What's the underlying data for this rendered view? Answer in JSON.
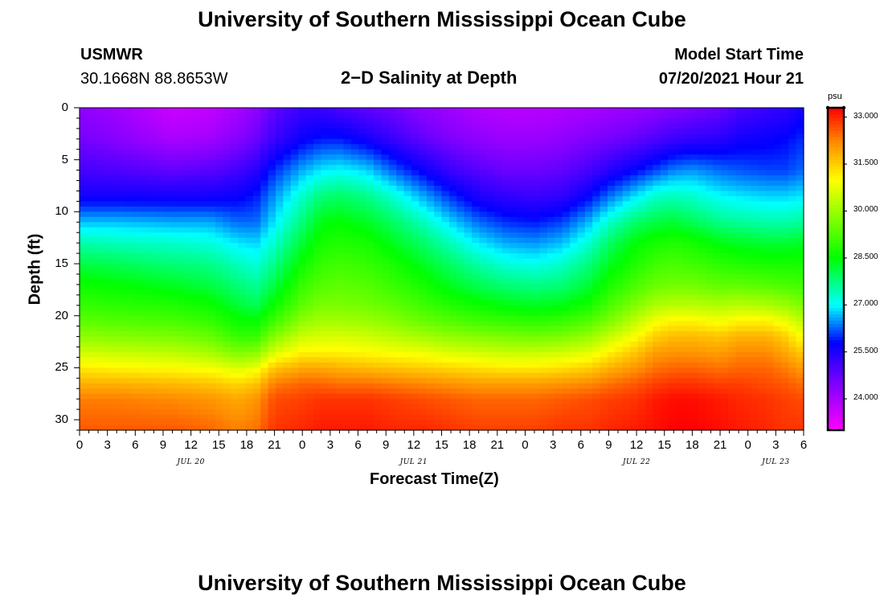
{
  "header": {
    "title": "University of Southern Mississippi Ocean Cube",
    "station": "USMWR",
    "location": "30.1668N  88.8653W",
    "plot_title": "2−D Salinity at Depth",
    "model_start_label": "Model Start Time",
    "model_start_value": "07/20/2021 Hour 21"
  },
  "footer": {
    "title": "University of Southern Mississippi Ocean Cube"
  },
  "colors": {
    "background": "#ffffff",
    "text": "#000000"
  },
  "chart_data": {
    "type": "heatmap",
    "title": "2−D Salinity at Depth",
    "xlabel": "Forecast Time(Z)",
    "ylabel": "Depth (ft)",
    "x_range_hours": [
      0,
      78
    ],
    "y_range_ft": [
      0,
      31
    ],
    "xticks": [
      {
        "hour": 0,
        "label": "0"
      },
      {
        "hour": 3,
        "label": "3"
      },
      {
        "hour": 6,
        "label": "6"
      },
      {
        "hour": 9,
        "label": "9"
      },
      {
        "hour": 12,
        "label": "12"
      },
      {
        "hour": 15,
        "label": "15"
      },
      {
        "hour": 18,
        "label": "18"
      },
      {
        "hour": 21,
        "label": "21"
      },
      {
        "hour": 24,
        "label": "0"
      },
      {
        "hour": 27,
        "label": "3"
      },
      {
        "hour": 30,
        "label": "6"
      },
      {
        "hour": 33,
        "label": "9"
      },
      {
        "hour": 36,
        "label": "12"
      },
      {
        "hour": 39,
        "label": "15"
      },
      {
        "hour": 42,
        "label": "18"
      },
      {
        "hour": 45,
        "label": "21"
      },
      {
        "hour": 48,
        "label": "0"
      },
      {
        "hour": 51,
        "label": "3"
      },
      {
        "hour": 54,
        "label": "6"
      },
      {
        "hour": 57,
        "label": "9"
      },
      {
        "hour": 60,
        "label": "12"
      },
      {
        "hour": 63,
        "label": "15"
      },
      {
        "hour": 66,
        "label": "18"
      },
      {
        "hour": 69,
        "label": "21"
      },
      {
        "hour": 72,
        "label": "0"
      },
      {
        "hour": 75,
        "label": "3"
      },
      {
        "hour": 78,
        "label": "6"
      }
    ],
    "yticks": [
      {
        "depth": 0,
        "label": "0"
      },
      {
        "depth": 5,
        "label": "5"
      },
      {
        "depth": 10,
        "label": "10"
      },
      {
        "depth": 15,
        "label": "15"
      },
      {
        "depth": 20,
        "label": "20"
      },
      {
        "depth": 25,
        "label": "25"
      },
      {
        "depth": 30,
        "label": "30"
      }
    ],
    "day_labels": [
      {
        "hour": 12,
        "label": "JUL 20"
      },
      {
        "hour": 36,
        "label": "JUL 21"
      },
      {
        "hour": 60,
        "label": "JUL 22"
      },
      {
        "hour": 75,
        "label": "JUL 23"
      }
    ],
    "colorbar": {
      "unit": "psu",
      "range": [
        23.0,
        33.3
      ],
      "ticks": [
        {
          "value": 33.0,
          "label": "33.000"
        },
        {
          "value": 31.5,
          "label": "31.500"
        },
        {
          "value": 30.0,
          "label": "30.000"
        },
        {
          "value": 28.5,
          "label": "28.500"
        },
        {
          "value": 27.0,
          "label": "27.000"
        },
        {
          "value": 25.5,
          "label": "25.500"
        },
        {
          "value": 24.0,
          "label": "24.000"
        }
      ],
      "color_stops": [
        {
          "value": 23.0,
          "color": "#ff00ff"
        },
        {
          "value": 24.5,
          "color": "#7f00ff"
        },
        {
          "value": 25.8,
          "color": "#0000ff"
        },
        {
          "value": 27.0,
          "color": "#00ffff"
        },
        {
          "value": 28.5,
          "color": "#00ff00"
        },
        {
          "value": 31.0,
          "color": "#ffff00"
        },
        {
          "value": 32.2,
          "color": "#ff8c00"
        },
        {
          "value": 33.3,
          "color": "#ff0000"
        }
      ]
    },
    "time_hours": [
      0,
      4,
      10,
      14,
      17,
      19,
      21,
      24,
      26,
      28,
      31,
      34,
      37,
      40,
      43,
      46,
      49,
      52,
      55,
      57,
      60,
      62,
      64,
      66,
      69,
      71,
      74,
      76,
      78
    ],
    "depth_ft": [
      0,
      3,
      6,
      8.5,
      11,
      13,
      15,
      17,
      19,
      20.5,
      22,
      23.5,
      25,
      26.5,
      28,
      31
    ],
    "salinity_psu": [
      [
        24.3,
        24.1,
        23.6,
        23.7,
        24.0,
        24.3,
        24.8,
        25.2,
        25.2,
        25.0,
        24.8,
        24.6,
        24.3,
        24.1,
        23.9,
        23.8,
        23.8,
        23.9,
        24.0,
        24.1,
        24.2,
        24.3,
        24.4,
        24.5,
        24.7,
        25.0,
        25.2,
        25.3,
        25.6
      ],
      [
        24.6,
        24.4,
        24.0,
        24.1,
        24.4,
        24.7,
        25.2,
        25.7,
        25.9,
        25.9,
        25.6,
        25.2,
        24.8,
        24.5,
        24.3,
        24.2,
        24.2,
        24.3,
        24.5,
        24.6,
        24.8,
        25.0,
        25.2,
        25.3,
        25.4,
        25.6,
        25.7,
        25.8,
        26.0
      ],
      [
        25.1,
        25.0,
        24.8,
        24.9,
        25.1,
        25.4,
        26.0,
        26.6,
        26.9,
        27.0,
        26.8,
        26.2,
        25.7,
        25.2,
        24.9,
        24.7,
        24.7,
        24.8,
        25.1,
        25.4,
        25.8,
        26.1,
        26.4,
        26.5,
        26.3,
        26.2,
        26.1,
        26.1,
        26.3
      ],
      [
        25.6,
        25.6,
        25.6,
        25.6,
        25.7,
        25.9,
        26.5,
        27.3,
        27.8,
        27.9,
        27.7,
        27.2,
        26.6,
        26.0,
        25.5,
        25.3,
        25.2,
        25.3,
        25.8,
        26.3,
        26.9,
        27.3,
        27.4,
        27.3,
        27.0,
        26.9,
        26.8,
        26.8,
        26.9
      ],
      [
        26.7,
        26.7,
        26.6,
        26.6,
        26.3,
        26.3,
        26.9,
        27.8,
        28.4,
        28.5,
        28.3,
        27.9,
        27.4,
        26.8,
        26.3,
        26.0,
        25.9,
        26.1,
        26.7,
        27.3,
        27.9,
        28.1,
        28.2,
        28.0,
        27.7,
        27.6,
        27.5,
        27.5,
        27.6
      ],
      [
        27.5,
        27.4,
        27.3,
        27.2,
        26.9,
        26.8,
        27.3,
        28.2,
        28.7,
        28.8,
        28.7,
        28.3,
        27.9,
        27.4,
        26.9,
        26.6,
        26.5,
        26.7,
        27.3,
        27.9,
        28.5,
        28.7,
        28.8,
        28.7,
        28.4,
        28.3,
        28.2,
        28.2,
        28.3
      ],
      [
        28.1,
        28.0,
        27.8,
        27.7,
        27.4,
        27.2,
        27.7,
        28.6,
        29.0,
        29.1,
        29.0,
        28.7,
        28.3,
        27.9,
        27.5,
        27.2,
        27.1,
        27.3,
        27.8,
        28.3,
        28.8,
        29.1,
        29.2,
        29.1,
        28.9,
        28.8,
        28.7,
        28.7,
        28.7
      ],
      [
        28.6,
        28.5,
        28.3,
        28.1,
        27.8,
        27.6,
        28.1,
        29.0,
        29.3,
        29.4,
        29.3,
        29.0,
        28.7,
        28.3,
        28.0,
        27.8,
        27.7,
        27.8,
        28.2,
        28.7,
        29.2,
        29.5,
        29.6,
        29.6,
        29.4,
        29.4,
        29.3,
        29.2,
        29.1
      ],
      [
        29.0,
        28.9,
        28.8,
        28.6,
        28.2,
        28.0,
        28.6,
        29.4,
        29.7,
        29.7,
        29.6,
        29.4,
        29.1,
        28.8,
        28.6,
        28.4,
        28.3,
        28.4,
        28.7,
        29.2,
        29.8,
        30.2,
        30.3,
        30.3,
        30.2,
        30.3,
        30.2,
        30.0,
        29.7
      ],
      [
        29.4,
        29.3,
        29.2,
        29.0,
        28.6,
        28.5,
        29.1,
        29.9,
        30.1,
        30.1,
        30.0,
        29.8,
        29.5,
        29.3,
        29.1,
        29.0,
        28.9,
        29.0,
        29.3,
        29.7,
        30.4,
        30.9,
        31.1,
        31.1,
        30.9,
        31.1,
        31.1,
        30.8,
        30.3
      ],
      [
        29.9,
        29.8,
        29.7,
        29.5,
        29.0,
        29.0,
        29.8,
        30.5,
        30.6,
        30.6,
        30.5,
        30.3,
        30.1,
        29.9,
        29.8,
        29.7,
        29.6,
        29.7,
        30.0,
        30.4,
        31.0,
        31.5,
        31.7,
        31.7,
        31.6,
        31.8,
        31.8,
        31.5,
        30.9
      ],
      [
        30.5,
        30.4,
        30.3,
        30.1,
        29.7,
        29.8,
        30.6,
        31.1,
        31.1,
        31.1,
        31.0,
        30.9,
        30.8,
        30.6,
        30.5,
        30.4,
        30.4,
        30.5,
        30.7,
        31.1,
        31.6,
        32.0,
        32.1,
        32.1,
        32.0,
        32.2,
        32.2,
        31.9,
        31.5
      ],
      [
        31.2,
        31.1,
        31.0,
        30.9,
        30.6,
        30.8,
        31.6,
        31.9,
        31.9,
        31.8,
        31.7,
        31.6,
        31.5,
        31.4,
        31.3,
        31.2,
        31.2,
        31.3,
        31.5,
        31.8,
        32.1,
        32.4,
        32.5,
        32.5,
        32.4,
        32.5,
        32.5,
        32.3,
        32.0
      ],
      [
        31.8,
        31.8,
        31.7,
        31.6,
        31.4,
        31.6,
        32.3,
        32.5,
        32.5,
        32.4,
        32.4,
        32.3,
        32.2,
        32.1,
        32.0,
        32.0,
        32.0,
        32.1,
        32.2,
        32.4,
        32.6,
        32.8,
        32.9,
        32.9,
        32.8,
        32.8,
        32.7,
        32.6,
        32.4
      ],
      [
        32.3,
        32.3,
        32.2,
        32.1,
        31.9,
        32.1,
        32.7,
        32.8,
        32.9,
        32.9,
        32.9,
        32.8,
        32.7,
        32.6,
        32.5,
        32.5,
        32.5,
        32.6,
        32.7,
        32.8,
        32.9,
        33.1,
        33.2,
        33.2,
        33.1,
        33.0,
        32.9,
        32.8,
        32.7
      ],
      [
        32.6,
        32.6,
        32.6,
        32.5,
        32.3,
        32.4,
        32.9,
        33.0,
        33.1,
        33.1,
        33.1,
        33.0,
        33.0,
        32.9,
        32.8,
        32.8,
        32.8,
        32.9,
        32.9,
        33.0,
        33.1,
        33.2,
        33.3,
        33.3,
        33.2,
        33.1,
        33.0,
        32.9,
        32.9
      ]
    ]
  }
}
